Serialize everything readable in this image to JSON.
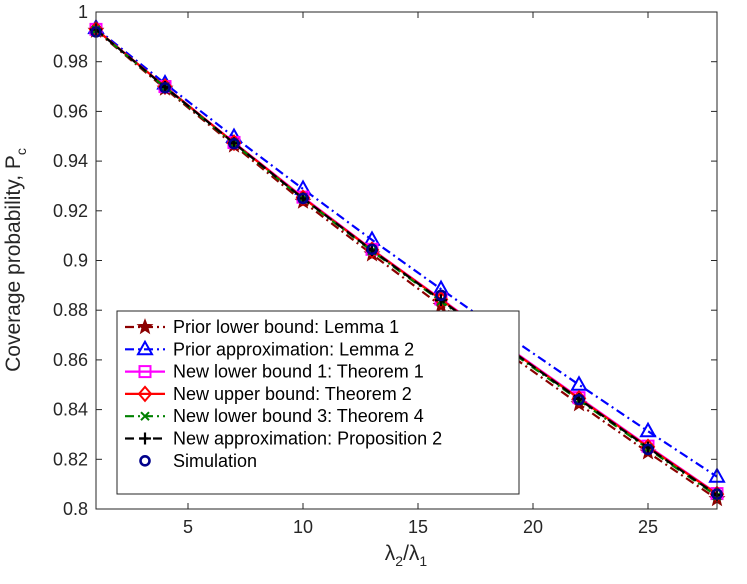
{
  "chart_data": {
    "type": "line",
    "title": "",
    "xlabel": "λ2/λ1",
    "xlabel_parts": {
      "sym1": "λ",
      "sub1": "2",
      "slash": "/",
      "sym2": "λ",
      "sub2": "1"
    },
    "ylabel": "Coverage probability, P",
    "ylabel_subscript": "c",
    "xlim": [
      1,
      28
    ],
    "ylim": [
      0.8,
      1.0
    ],
    "xticks": [
      5,
      10,
      15,
      20,
      25
    ],
    "yticks": [
      0.8,
      0.82,
      0.84,
      0.86,
      0.88,
      0.9,
      0.92,
      0.94,
      0.96,
      0.98,
      1
    ],
    "ytick_labels": [
      "0.8",
      "0.82",
      "0.84",
      "0.86",
      "0.88",
      "0.9",
      "0.92",
      "0.94",
      "0.96",
      "0.98",
      "1"
    ],
    "grid": false,
    "legend_position": "bottom-left",
    "x": [
      1,
      4,
      7,
      10,
      13,
      16,
      19,
      22,
      25,
      28
    ],
    "series": [
      {
        "name": "Prior lower bound: Lemma 1",
        "color": "#8b0000",
        "dash": "dashdot",
        "marker": "star",
        "values": [
          0.9925,
          0.9692,
          0.9463,
          0.9237,
          0.9025,
          0.8818,
          0.862,
          0.8422,
          0.8228,
          0.804
        ]
      },
      {
        "name": "Prior approximation: Lemma 2",
        "color": "#0000ff",
        "dash": "dashdot",
        "marker": "triangle",
        "values": [
          0.9935,
          0.9712,
          0.9497,
          0.9288,
          0.9083,
          0.8885,
          0.869,
          0.85,
          0.8313,
          0.813
        ]
      },
      {
        "name": "New lower bound 1: Theorem 1",
        "color": "#ff00ff",
        "dash": "solid",
        "marker": "square",
        "values": [
          0.993,
          0.97,
          0.9475,
          0.9255,
          0.9045,
          0.8845,
          0.8645,
          0.8448,
          0.8253,
          0.8062
        ]
      },
      {
        "name": "New upper bound: Theorem 2",
        "color": "#ff0000",
        "dash": "solid",
        "marker": "diamond",
        "values": [
          0.993,
          0.97,
          0.9474,
          0.9252,
          0.9043,
          0.8843,
          0.8642,
          0.8445,
          0.825,
          0.806
        ]
      },
      {
        "name": "New lower bound 3: Theorem 4",
        "color": "#008000",
        "dash": "dashdot",
        "marker": "x",
        "values": [
          0.9928,
          0.9697,
          0.947,
          0.9248,
          0.9038,
          0.8836,
          0.8635,
          0.8438,
          0.8243,
          0.8052
        ]
      },
      {
        "name": "New approximation: Proposition 2",
        "color": "#000000",
        "dash": "dashed",
        "marker": "plus",
        "values": [
          0.9929,
          0.9698,
          0.9472,
          0.925,
          0.9041,
          0.884,
          0.864,
          0.8442,
          0.8247,
          0.8056
        ]
      },
      {
        "name": "Simulation",
        "color": "#00008b",
        "dash": "none",
        "marker": "circle",
        "values": [
          0.992,
          0.9695,
          0.947,
          0.925,
          0.9045,
          0.886,
          0.8635,
          0.844,
          0.824,
          0.806
        ]
      }
    ]
  }
}
